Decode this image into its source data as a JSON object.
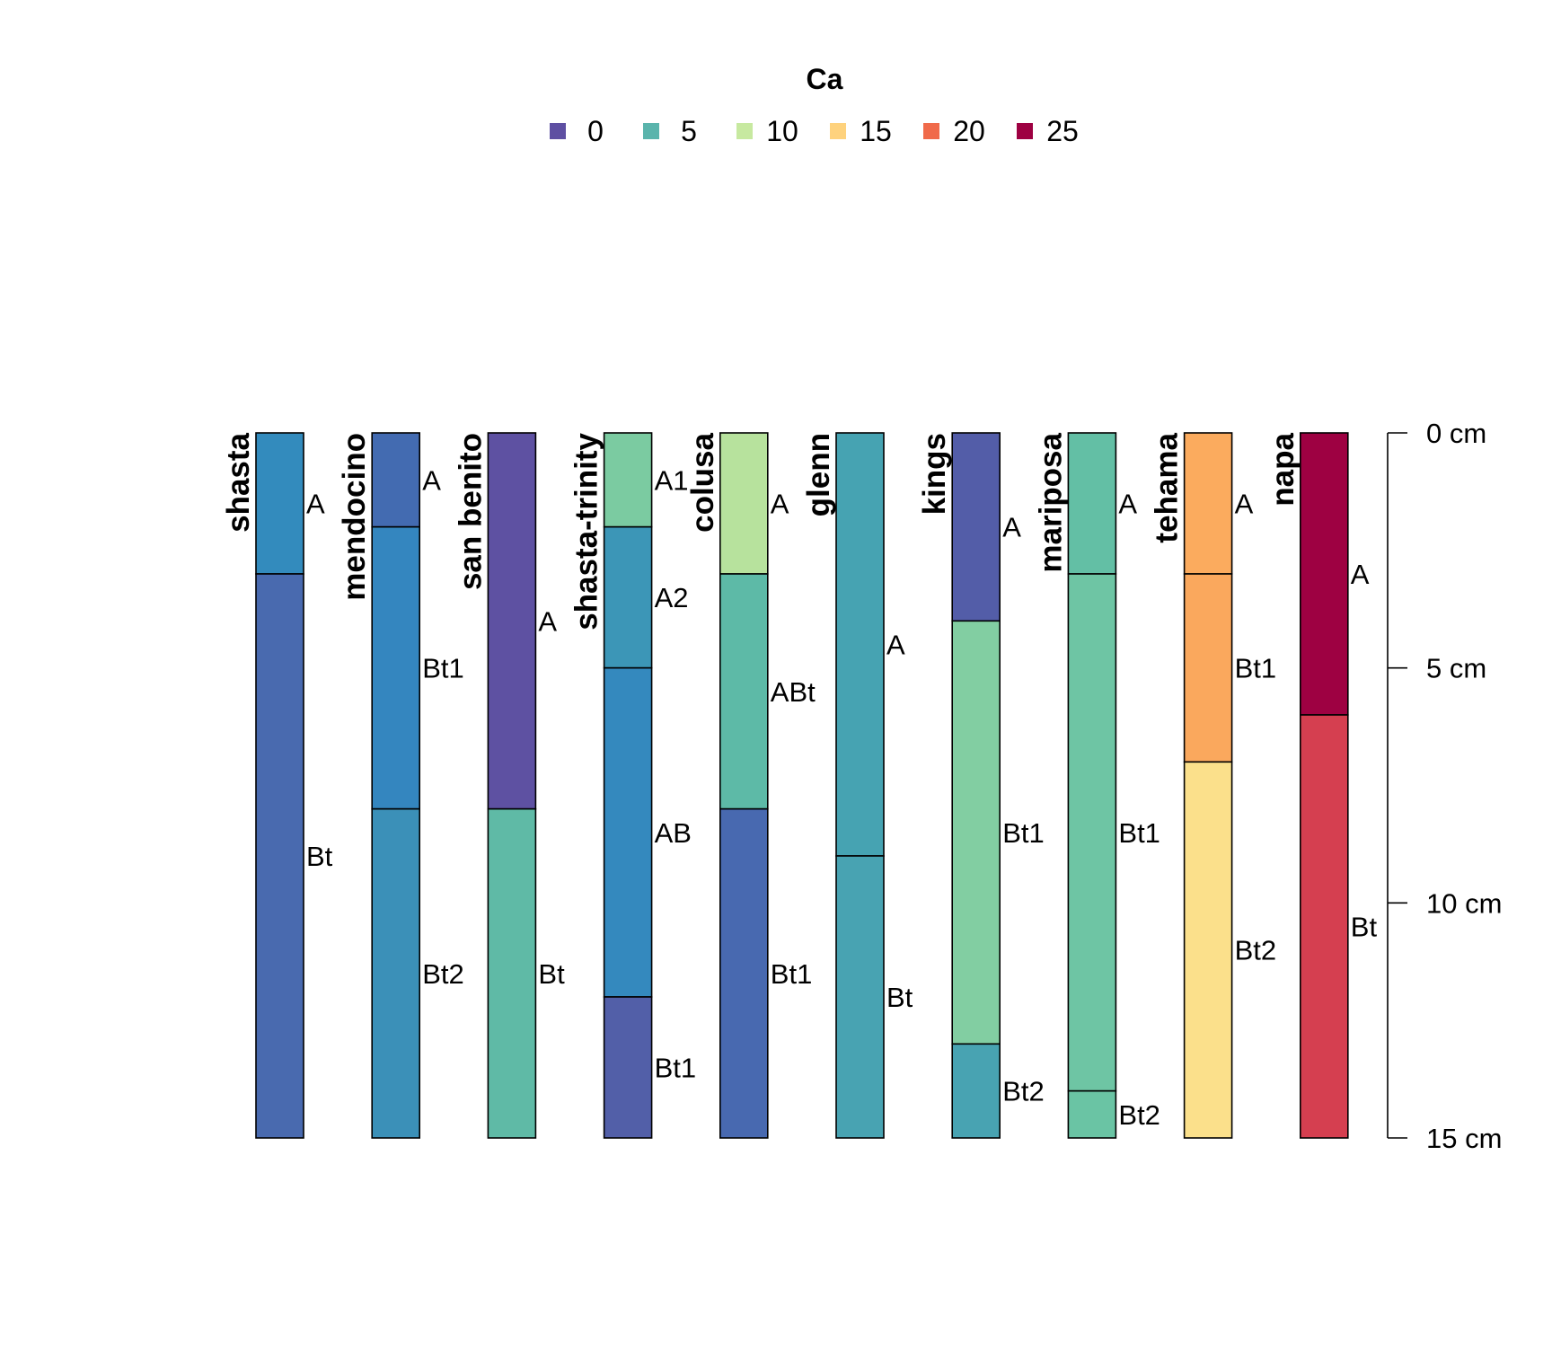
{
  "chart_data": {
    "type": "soil-profile",
    "legend": {
      "title": "Ca",
      "placement": "top-center",
      "entries": [
        {
          "label": "0",
          "color": "#5E4FA2"
        },
        {
          "label": "5",
          "color": "#5AB4AC"
        },
        {
          "label": "10",
          "color": "#C7E9A0"
        },
        {
          "label": "15",
          "color": "#FED27D"
        },
        {
          "label": "20",
          "color": "#F06A4A"
        },
        {
          "label": "25",
          "color": "#9E0142"
        }
      ]
    },
    "depth_axis": {
      "unit": "cm",
      "range": [
        0,
        15
      ],
      "ticks": [
        {
          "value": 0,
          "label": "0 cm"
        },
        {
          "value": 5,
          "label": "5 cm"
        },
        {
          "value": 10,
          "label": "10 cm"
        },
        {
          "value": 15,
          "label": "15 cm"
        }
      ]
    },
    "profiles": [
      {
        "name": "shasta",
        "horizons": [
          {
            "name": "A",
            "top": 0,
            "bottom": 3,
            "color": "#338BBD"
          },
          {
            "name": "Bt",
            "top": 3,
            "bottom": 15,
            "color": "#496AAF"
          }
        ]
      },
      {
        "name": "mendocino",
        "horizons": [
          {
            "name": "A",
            "top": 0,
            "bottom": 2,
            "color": "#436BB1"
          },
          {
            "name": "Bt1",
            "top": 2,
            "bottom": 8,
            "color": "#3486BF"
          },
          {
            "name": "Bt2",
            "top": 8,
            "bottom": 15,
            "color": "#3B90B8"
          }
        ]
      },
      {
        "name": "san benito",
        "horizons": [
          {
            "name": "A",
            "top": 0,
            "bottom": 8,
            "color": "#5E51A2"
          },
          {
            "name": "Bt",
            "top": 8,
            "bottom": 15,
            "color": "#5FBAA6"
          }
        ]
      },
      {
        "name": "shasta-trinity",
        "horizons": [
          {
            "name": "A1",
            "top": 0,
            "bottom": 2,
            "color": "#7BCBA1"
          },
          {
            "name": "A2",
            "top": 2,
            "bottom": 5,
            "color": "#3C96B7"
          },
          {
            "name": "AB",
            "top": 5,
            "bottom": 12,
            "color": "#3489BE"
          },
          {
            "name": "Bt1",
            "top": 12,
            "bottom": 15,
            "color": "#525FA8"
          }
        ]
      },
      {
        "name": "colusa",
        "horizons": [
          {
            "name": "A",
            "top": 0,
            "bottom": 3,
            "color": "#B7E29D"
          },
          {
            "name": "ABt",
            "top": 3,
            "bottom": 8,
            "color": "#5DBAA7"
          },
          {
            "name": "Bt1",
            "top": 8,
            "bottom": 15,
            "color": "#4869B0"
          }
        ]
      },
      {
        "name": "glenn",
        "horizons": [
          {
            "name": "A",
            "top": 0,
            "bottom": 9,
            "color": "#46A3B2"
          },
          {
            "name": "Bt",
            "top": 9,
            "bottom": 15,
            "color": "#48A3B2"
          }
        ]
      },
      {
        "name": "kings",
        "horizons": [
          {
            "name": "A",
            "top": 0,
            "bottom": 4,
            "color": "#535DA8"
          },
          {
            "name": "Bt1",
            "top": 4,
            "bottom": 13,
            "color": "#82CEA2"
          },
          {
            "name": "Bt2",
            "top": 13,
            "bottom": 15,
            "color": "#48A3B2"
          }
        ]
      },
      {
        "name": "mariposa",
        "horizons": [
          {
            "name": "A",
            "top": 0,
            "bottom": 3,
            "color": "#63BFA5"
          },
          {
            "name": "Bt1",
            "top": 3,
            "bottom": 14,
            "color": "#6EC5A4"
          },
          {
            "name": "Bt2",
            "top": 14,
            "bottom": 15,
            "color": "#6AC4A4"
          }
        ]
      },
      {
        "name": "tehama",
        "horizons": [
          {
            "name": "A",
            "top": 0,
            "bottom": 3,
            "color": "#FBAB5E"
          },
          {
            "name": "Bt1",
            "top": 3,
            "bottom": 7,
            "color": "#FAA85D"
          },
          {
            "name": "Bt2",
            "top": 7,
            "bottom": 15,
            "color": "#FBE08B"
          }
        ]
      },
      {
        "name": "napa",
        "horizons": [
          {
            "name": "A",
            "top": 0,
            "bottom": 6,
            "color": "#9E0142"
          },
          {
            "name": "Bt",
            "top": 6,
            "bottom": 15,
            "color": "#D53F50"
          }
        ]
      }
    ]
  }
}
